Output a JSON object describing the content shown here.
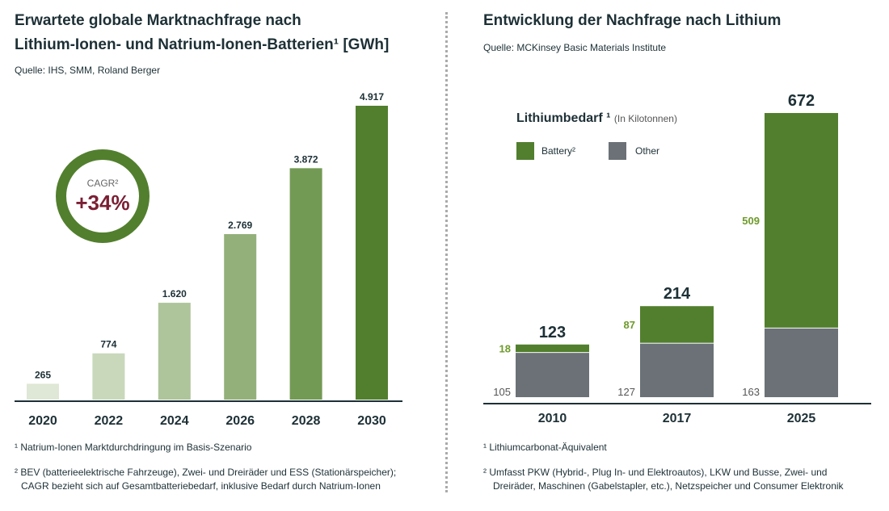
{
  "left": {
    "title_line1": "Erwartete globale Marktnachfrage nach",
    "title_line2": "Lithium-Ionen- und Natrium-Ionen-Batterien¹ [GWh]",
    "source": "Quelle: IHS, SMM, Roland Berger",
    "cagr_label": "CAGR²",
    "cagr_value": "+34%",
    "footnote1": "¹ Natrium-Ionen Marktdurchdringung im Basis-Szenario",
    "footnote2_line1": "² BEV (batterieelektrische Fahrzeuge), Zwei- und Dreiräder und ESS (Stationärspeicher);",
    "footnote2_line2": "CAGR bezieht sich auf Gesamtbatteriebedarf, inklusive Bedarf durch Natrium-Ionen"
  },
  "right": {
    "title": "Entwicklung der Nachfrage nach Lithium",
    "source": "Quelle: MCKinsey Basic Materials Institute",
    "legend_title": "Lithiumbedarf ¹",
    "legend_unit": "(In Kilotonnen)",
    "footnote1": "¹ Lithiumcarbonat-Äquivalent",
    "footnote2_line1": "² Umfasst PKW (Hybrid-, Plug In- und Elektroautos), LKW und Busse, Zwei- und",
    "footnote2_line2": "Dreiräder, Maschinen (Gabelstapler, etc.), Netzspeicher und Consumer Elektronik"
  },
  "colors": {
    "green": "#527f2e",
    "grey": "#6b7177",
    "cagr": "#7a1f33",
    "battery_label": "#6d9a2a"
  },
  "chart_data": [
    {
      "type": "bar",
      "title": "Erwartete globale Marktnachfrage nach Lithium-Ionen- und Natrium-Ionen-Batterien [GWh]",
      "categories": [
        "2020",
        "2022",
        "2024",
        "2026",
        "2028",
        "2030"
      ],
      "values": [
        265,
        774,
        1620,
        2769,
        3872,
        4917
      ],
      "labels": [
        "265",
        "774",
        "1.620",
        "2.769",
        "3.872",
        "4.917"
      ],
      "ylim": [
        0,
        4917
      ],
      "ylabel": "GWh"
    },
    {
      "type": "bar",
      "stacked": true,
      "title": "Entwicklung der Nachfrage nach Lithium",
      "categories": [
        "2010",
        "2017",
        "2025"
      ],
      "series": [
        {
          "name": "Other",
          "values": [
            105,
            127,
            163
          ]
        },
        {
          "name": "Battery²",
          "values": [
            18,
            87,
            509
          ]
        }
      ],
      "totals": [
        123,
        214,
        672
      ],
      "ylim": [
        0,
        672
      ],
      "ylabel": "Kilotonnen"
    }
  ]
}
